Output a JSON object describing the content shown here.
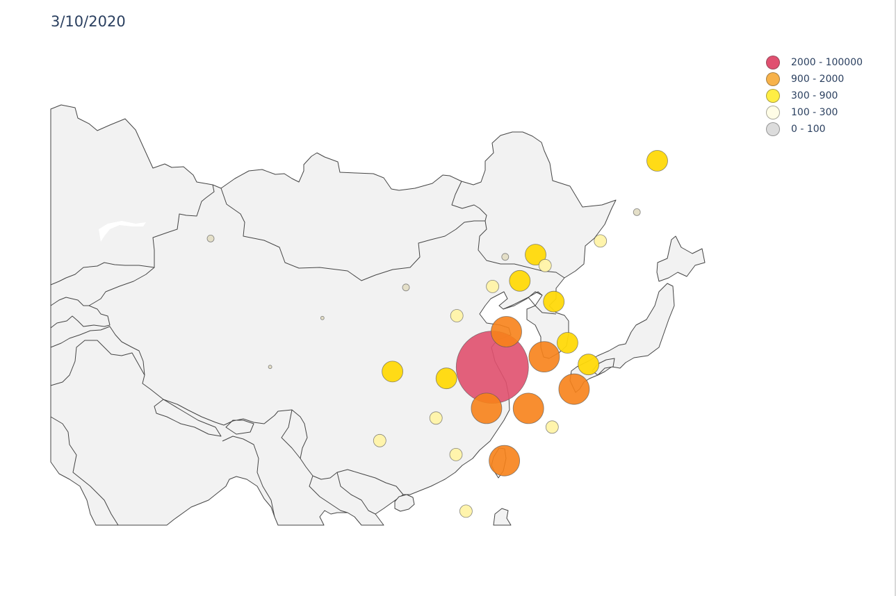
{
  "title": "3/10/2020",
  "legend": [
    {
      "label": "2000 - 100000",
      "color": "#e05070"
    },
    {
      "label": "900 - 2000",
      "color": "#f7b24a"
    },
    {
      "label": "300 - 900",
      "color": "#ffee44"
    },
    {
      "label": "100 - 300",
      "color": "#fffde6"
    },
    {
      "label": "0 - 100",
      "color": "#dcdcdc"
    }
  ],
  "chart_data": {
    "type": "scatter",
    "title": "3/10/2020",
    "legend_position": "top-right",
    "points": [
      {
        "lon": 112.27,
        "lat": 30.98,
        "bin": "2000 - 100000"
      },
      {
        "lon": 113.61,
        "lat": 33.88,
        "bin": "900 - 2000"
      },
      {
        "lon": 117.23,
        "lat": 31.83,
        "bin": "900 - 2000"
      },
      {
        "lon": 111.71,
        "lat": 27.61,
        "bin": "900 - 2000"
      },
      {
        "lon": 115.72,
        "lat": 27.61,
        "bin": "900 - 2000"
      },
      {
        "lon": 120.09,
        "lat": 29.18,
        "bin": "900 - 2000"
      },
      {
        "lon": 113.42,
        "lat": 23.33,
        "bin": "900 - 2000"
      },
      {
        "lon": 128.05,
        "lat": 47.86,
        "bin": "300 - 900"
      },
      {
        "lon": 116.41,
        "lat": 40.18,
        "bin": "300 - 900"
      },
      {
        "lon": 114.9,
        "lat": 38.04,
        "bin": "300 - 900"
      },
      {
        "lon": 118.15,
        "lat": 36.34,
        "bin": "300 - 900"
      },
      {
        "lon": 119.46,
        "lat": 32.97,
        "bin": "300 - 900"
      },
      {
        "lon": 121.47,
        "lat": 31.2,
        "bin": "300 - 900"
      },
      {
        "lon": 107.87,
        "lat": 30.06,
        "bin": "300 - 900"
      },
      {
        "lon": 102.71,
        "lat": 30.62,
        "bin": "300 - 900"
      },
      {
        "lon": 122.61,
        "lat": 41.3,
        "bin": "100 - 300"
      },
      {
        "lon": 117.32,
        "lat": 39.29,
        "bin": "100 - 300"
      },
      {
        "lon": 112.29,
        "lat": 37.58,
        "bin": "100 - 300"
      },
      {
        "lon": 108.87,
        "lat": 35.19,
        "bin": "100 - 300"
      },
      {
        "lon": 106.87,
        "lat": 26.82,
        "bin": "100 - 300"
      },
      {
        "lon": 101.49,
        "lat": 24.97,
        "bin": "100 - 300"
      },
      {
        "lon": 108.79,
        "lat": 23.83,
        "bin": "100 - 300"
      },
      {
        "lon": 117.99,
        "lat": 26.08,
        "bin": "100 - 300"
      },
      {
        "lon": 109.75,
        "lat": 19.2,
        "bin": "100 - 300"
      },
      {
        "lon": 113.5,
        "lat": 40.0,
        "bin": "0 - 100"
      },
      {
        "lon": 126.1,
        "lat": 43.66,
        "bin": "0 - 100"
      },
      {
        "lon": 85.3,
        "lat": 41.5,
        "bin": "0 - 100"
      },
      {
        "lon": 104.0,
        "lat": 37.5,
        "bin": "0 - 100"
      },
      {
        "lon": 96.0,
        "lat": 35.0,
        "bin": "0 - 100"
      },
      {
        "lon": 91.0,
        "lat": 31.0,
        "bin": "0 - 100"
      }
    ]
  }
}
